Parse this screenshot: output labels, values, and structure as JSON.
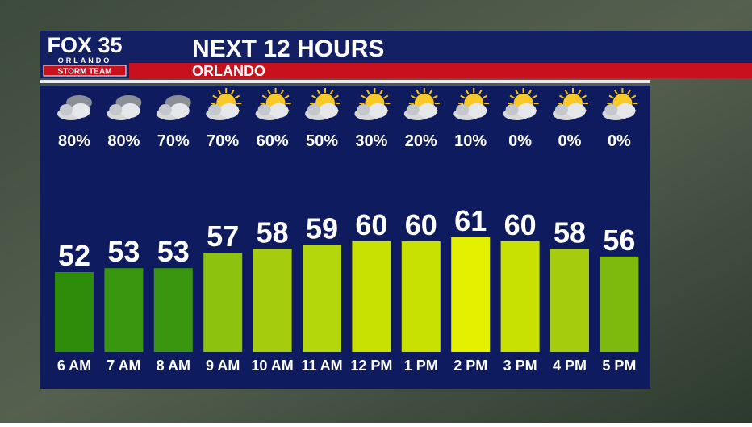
{
  "header": {
    "logo": "FOX 35",
    "logo_city": "ORLANDO",
    "logo_team": "STORM TEAM",
    "title": "NEXT 12 HOURS",
    "subtitle": "ORLANDO"
  },
  "chart_data": {
    "type": "bar",
    "categories": [
      "6 AM",
      "7 AM",
      "8 AM",
      "9 AM",
      "10 AM",
      "11 AM",
      "12 PM",
      "1 PM",
      "2 PM",
      "3 PM",
      "4 PM",
      "5 PM"
    ],
    "values": [
      52,
      53,
      53,
      57,
      58,
      59,
      60,
      60,
      61,
      60,
      58,
      56
    ],
    "colors": [
      "#2f8c0b",
      "#3b960f",
      "#3b960f",
      "#8dc30f",
      "#a6cd0d",
      "#b4d70b",
      "#c8e002",
      "#c8e002",
      "#e3f000",
      "#c8e002",
      "#a6cd0d",
      "#7eba0d"
    ],
    "precipitation": {
      "values": [
        80,
        80,
        70,
        70,
        60,
        50,
        30,
        20,
        10,
        0,
        0,
        0
      ],
      "value_labels": [
        "80%",
        "80%",
        "70%",
        "70%",
        "60%",
        "50%",
        "30%",
        "20%",
        "10%",
        "0%",
        "0%",
        "0%"
      ]
    }
  }
}
